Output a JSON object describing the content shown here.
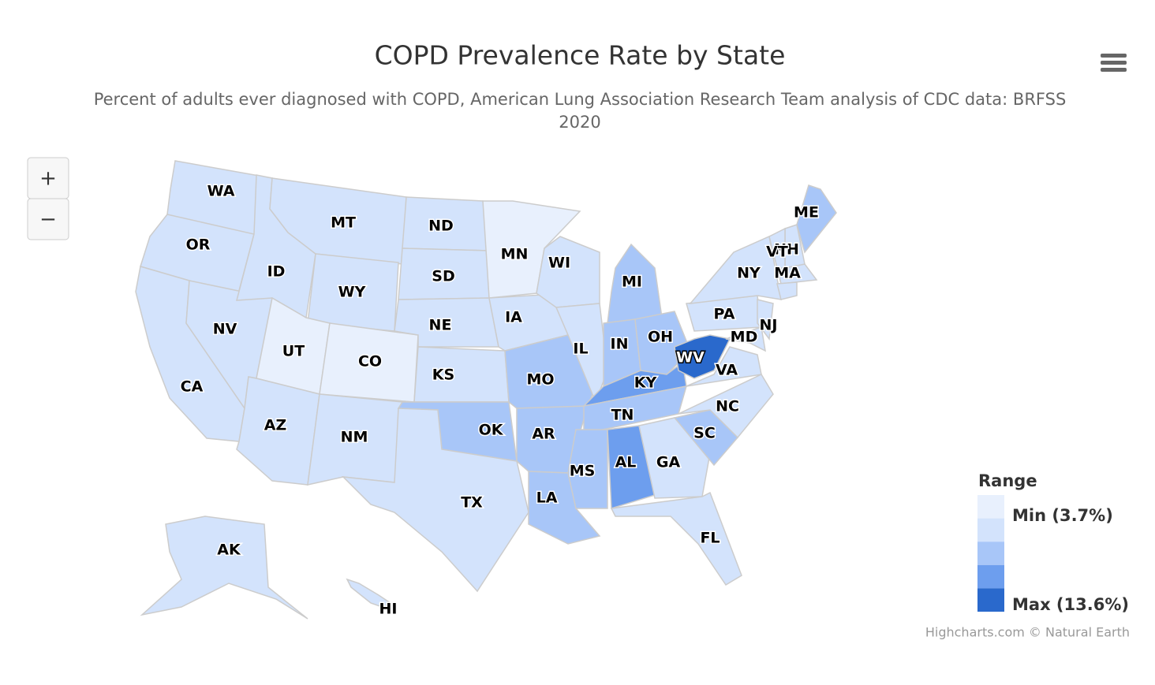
{
  "header": {
    "title": "COPD Prevalence Rate by State",
    "subtitle": "Percent of adults ever diagnosed with COPD, American Lung Association Research Team analysis of CDC data: BRFSS 2020"
  },
  "zoom": {
    "in": "+",
    "out": "−"
  },
  "states": [
    {
      "label": "WA",
      "color": "#d3e3fc"
    },
    {
      "label": "OR",
      "color": "#d3e3fc"
    },
    {
      "label": "CA",
      "color": "#d3e3fc"
    },
    {
      "label": "NV",
      "color": "#d3e3fc"
    },
    {
      "label": "ID",
      "color": "#d3e3fc"
    },
    {
      "label": "MT",
      "color": "#d3e3fc"
    },
    {
      "label": "WY",
      "color": "#d3e3fc"
    },
    {
      "label": "UT",
      "color": "#e8f0fd"
    },
    {
      "label": "CO",
      "color": "#e8f0fd"
    },
    {
      "label": "AZ",
      "color": "#d3e3fc"
    },
    {
      "label": "NM",
      "color": "#d3e3fc"
    },
    {
      "label": "ND",
      "color": "#d3e3fc"
    },
    {
      "label": "SD",
      "color": "#d3e3fc"
    },
    {
      "label": "NE",
      "color": "#d3e3fc"
    },
    {
      "label": "KS",
      "color": "#d3e3fc"
    },
    {
      "label": "OK",
      "color": "#a8c6f8"
    },
    {
      "label": "TX",
      "color": "#d3e3fc"
    },
    {
      "label": "MN",
      "color": "#e8f0fd"
    },
    {
      "label": "IA",
      "color": "#d3e3fc"
    },
    {
      "label": "MO",
      "color": "#a8c6f8"
    },
    {
      "label": "AR",
      "color": "#a8c6f8"
    },
    {
      "label": "LA",
      "color": "#a8c6f8"
    },
    {
      "label": "WI",
      "color": "#d3e3fc"
    },
    {
      "label": "IL",
      "color": "#d3e3fc"
    },
    {
      "label": "MI",
      "color": "#a8c6f8"
    },
    {
      "label": "IN",
      "color": "#a8c6f8"
    },
    {
      "label": "OH",
      "color": "#a8c6f8"
    },
    {
      "label": "KY",
      "color": "#6d9eee"
    },
    {
      "label": "TN",
      "color": "#a8c6f8"
    },
    {
      "label": "MS",
      "color": "#a8c6f8"
    },
    {
      "label": "AL",
      "color": "#6d9eee"
    },
    {
      "label": "GA",
      "color": "#d3e3fc"
    },
    {
      "label": "FL",
      "color": "#d3e3fc"
    },
    {
      "label": "SC",
      "color": "#a8c6f8"
    },
    {
      "label": "NC",
      "color": "#d3e3fc"
    },
    {
      "label": "VA",
      "color": "#d3e3fc"
    },
    {
      "label": "WV",
      "color": "#2a69cc"
    },
    {
      "label": "PA",
      "color": "#d3e3fc"
    },
    {
      "label": "NY",
      "color": "#d3e3fc"
    },
    {
      "label": "NJ",
      "color": "#d3e3fc"
    },
    {
      "label": "MD",
      "color": "#d3e3fc"
    },
    {
      "label": "MA",
      "color": "#d3e3fc"
    },
    {
      "label": "NH",
      "color": "#d3e3fc"
    },
    {
      "label": "VT",
      "color": "#d3e3fc"
    },
    {
      "label": "ME",
      "color": "#a8c6f8"
    },
    {
      "label": null,
      "color": "#d3e3fc"
    },
    {
      "label": "AK",
      "color": "#d3e3fc"
    },
    {
      "label": "HI",
      "color": "#d3e3fc"
    }
  ],
  "legend": {
    "title": "Range",
    "min_label": "Min (3.7%)",
    "max_label": "Max (13.6%)",
    "colors": [
      "#e8f0fd",
      "#d3e3fc",
      "#a8c6f8",
      "#6d9eee",
      "#2a69cc"
    ]
  },
  "credits": "Highcharts.com © Natural Earth"
}
